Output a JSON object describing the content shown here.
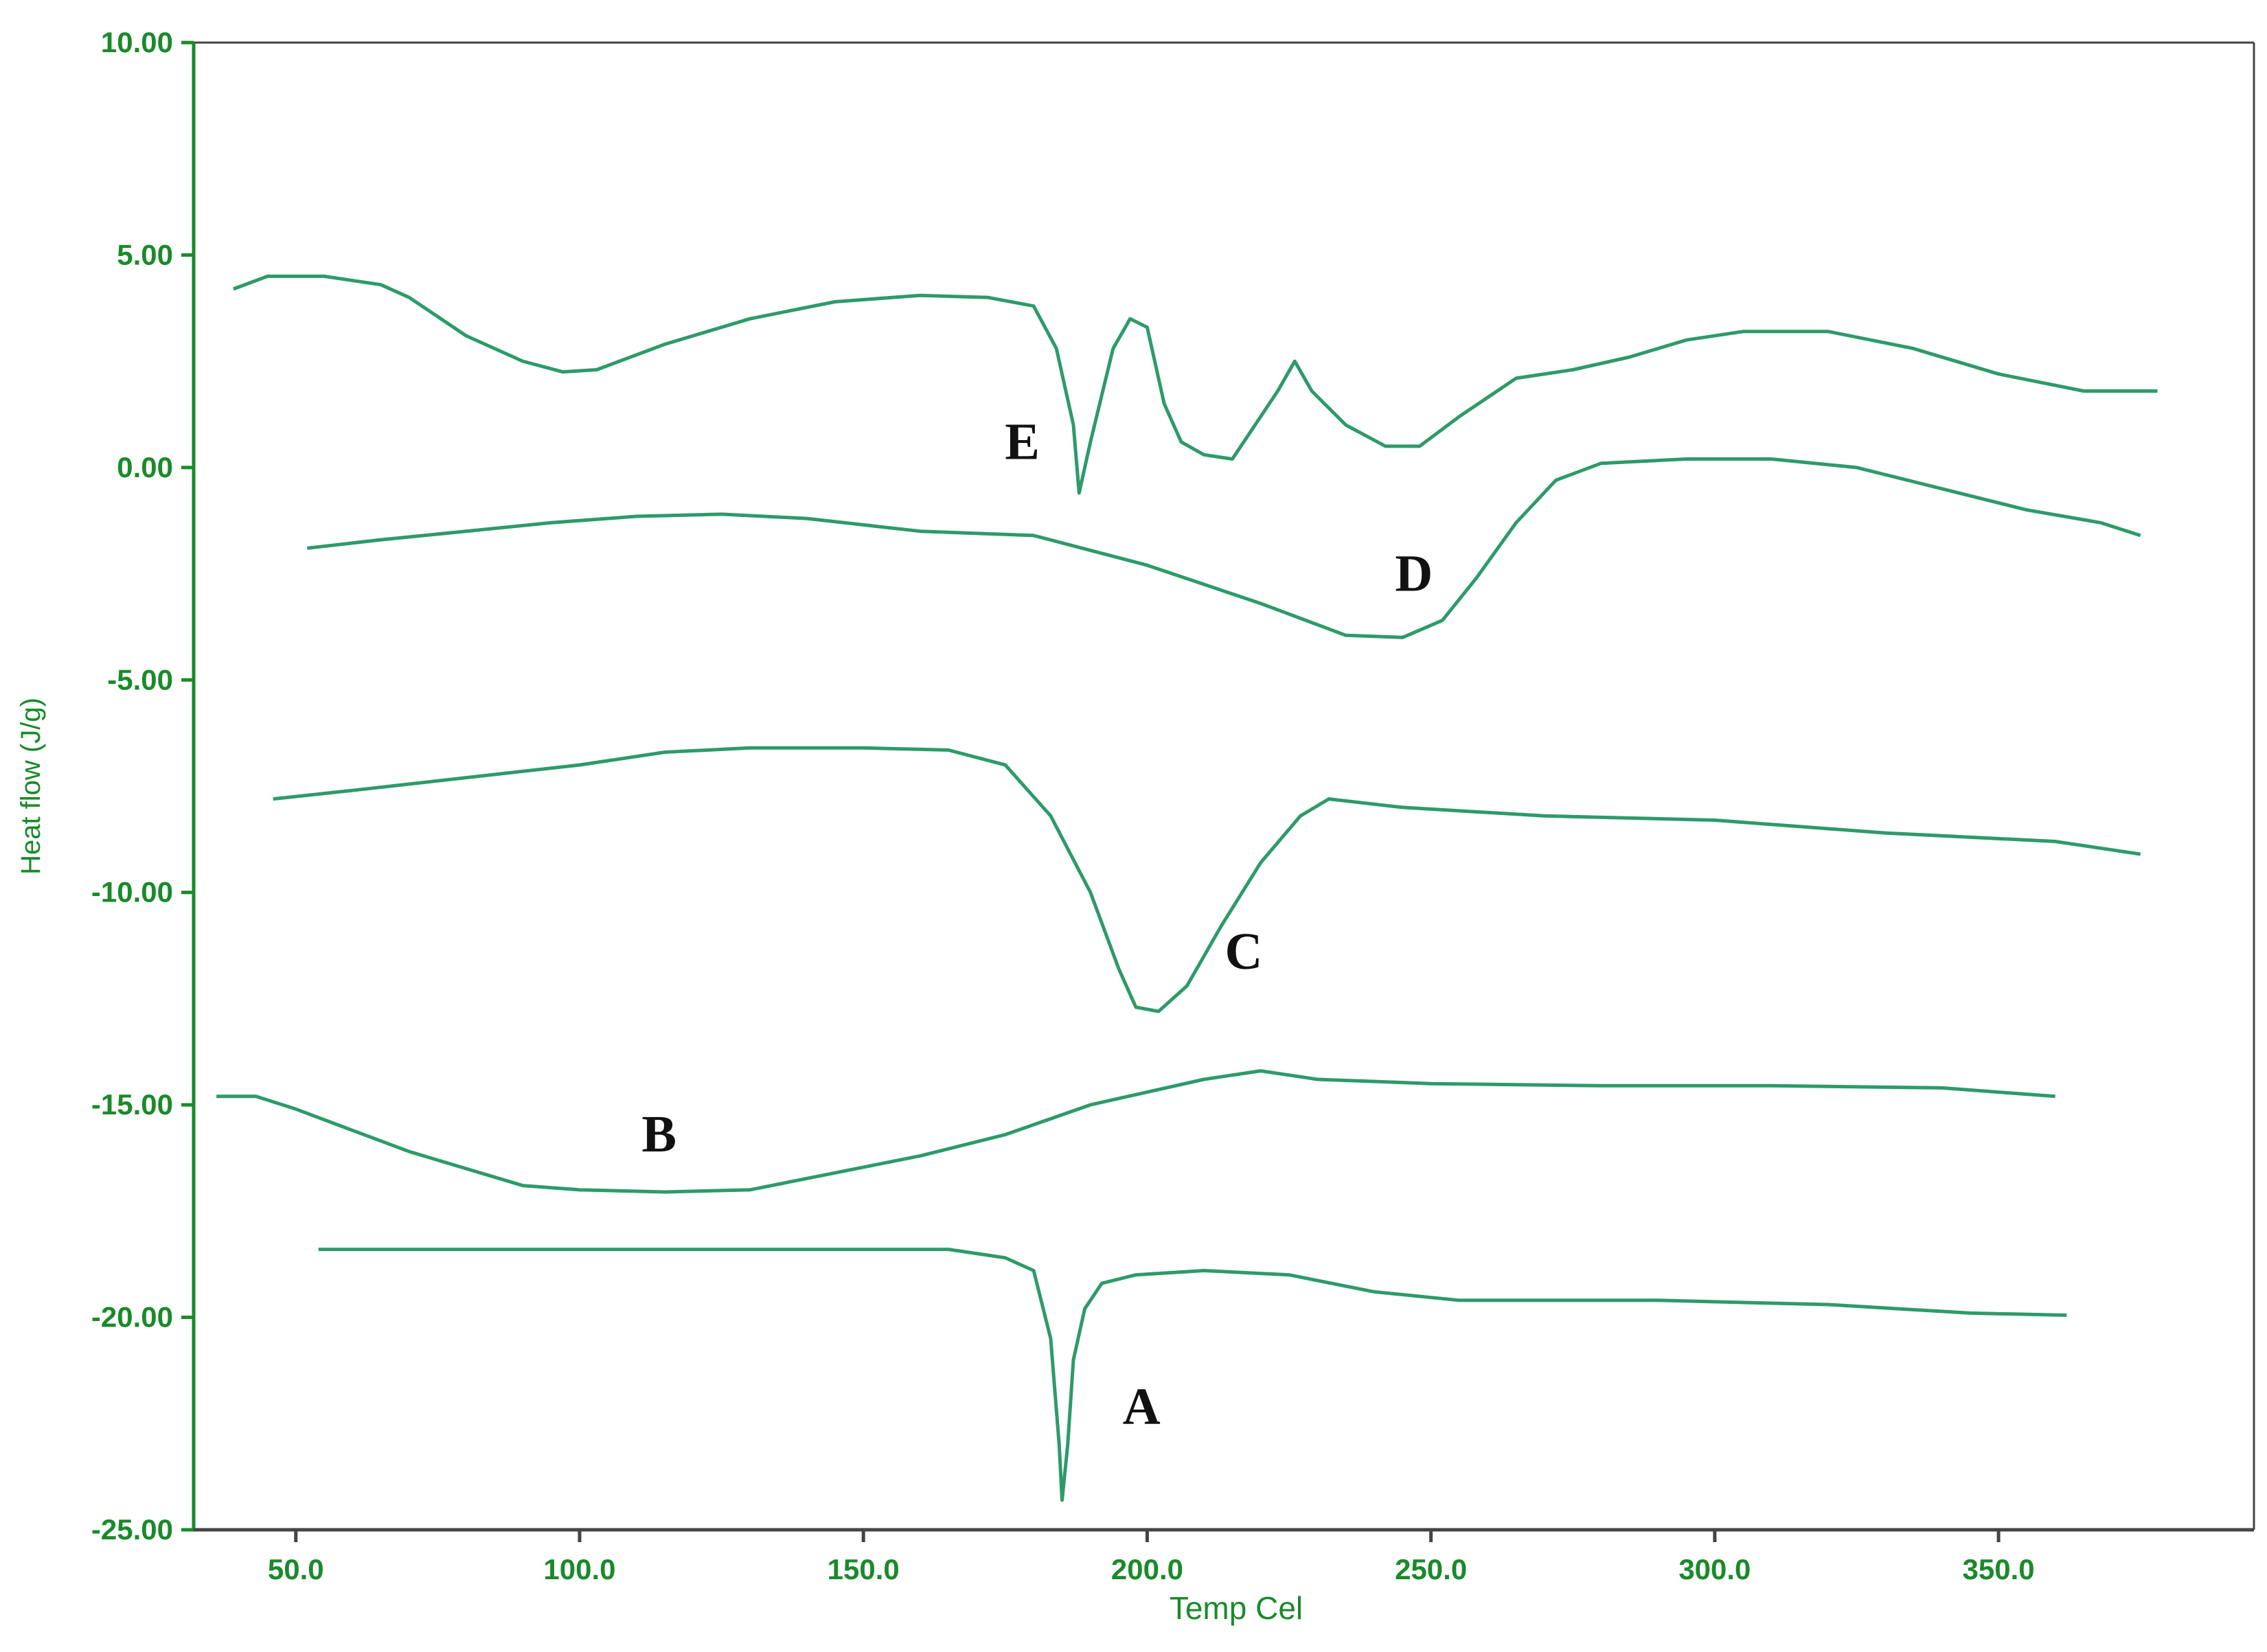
{
  "chart_data": {
    "type": "line",
    "title": "",
    "xlabel": "Temp Cel",
    "ylabel": "Heat flow (J/g)",
    "xlim": [
      32,
      395
    ],
    "ylim": [
      -25,
      10
    ],
    "x_ticks": [
      "50.0",
      "100.0",
      "150.0",
      "200.0",
      "250.0",
      "300.0",
      "350.0"
    ],
    "y_ticks": [
      "10.00",
      "5.00",
      "0.00",
      "-5.00",
      "-10.00",
      "-15.00",
      "-20.00",
      "-25.00"
    ],
    "grid": false,
    "colors": {
      "axis": "#1a8a2a",
      "curve": "#2e9a6a",
      "curve_dark": "#1f4f3a",
      "text": "#111111"
    },
    "series": [
      {
        "name": "E",
        "points": [
          [
            39,
            4.2
          ],
          [
            45,
            4.5
          ],
          [
            55,
            4.5
          ],
          [
            65,
            4.3
          ],
          [
            70,
            4.0
          ],
          [
            80,
            3.1
          ],
          [
            90,
            2.5
          ],
          [
            97,
            2.25
          ],
          [
            103,
            2.3
          ],
          [
            115,
            2.9
          ],
          [
            130,
            3.5
          ],
          [
            145,
            3.9
          ],
          [
            160,
            4.05
          ],
          [
            172,
            4.0
          ],
          [
            180,
            3.8
          ],
          [
            184,
            2.8
          ],
          [
            187,
            1.0
          ],
          [
            188,
            -0.6
          ],
          [
            190,
            0.6
          ],
          [
            194,
            2.8
          ],
          [
            197,
            3.5
          ],
          [
            200,
            3.3
          ],
          [
            203,
            1.5
          ],
          [
            206,
            0.6
          ],
          [
            210,
            0.3
          ],
          [
            215,
            0.2
          ],
          [
            219,
            1.0
          ],
          [
            223,
            1.8
          ],
          [
            226,
            2.5
          ],
          [
            229,
            1.8
          ],
          [
            235,
            1.0
          ],
          [
            242,
            0.5
          ],
          [
            248,
            0.5
          ],
          [
            255,
            1.2
          ],
          [
            265,
            2.1
          ],
          [
            275,
            2.3
          ],
          [
            285,
            2.6
          ],
          [
            295,
            3.0
          ],
          [
            305,
            3.2
          ],
          [
            320,
            3.2
          ],
          [
            335,
            2.8
          ],
          [
            350,
            2.2
          ],
          [
            365,
            1.8
          ],
          [
            378,
            1.8
          ]
        ]
      },
      {
        "name": "D",
        "points": [
          [
            52,
            -1.9
          ],
          [
            65,
            -1.7
          ],
          [
            80,
            -1.5
          ],
          [
            95,
            -1.3
          ],
          [
            110,
            -1.15
          ],
          [
            125,
            -1.1
          ],
          [
            140,
            -1.2
          ],
          [
            160,
            -1.5
          ],
          [
            180,
            -1.6
          ],
          [
            200,
            -2.3
          ],
          [
            220,
            -3.2
          ],
          [
            235,
            -3.95
          ],
          [
            245,
            -4.0
          ],
          [
            252,
            -3.6
          ],
          [
            258,
            -2.6
          ],
          [
            265,
            -1.3
          ],
          [
            272,
            -0.3
          ],
          [
            280,
            0.1
          ],
          [
            295,
            0.2
          ],
          [
            310,
            0.2
          ],
          [
            325,
            0.0
          ],
          [
            340,
            -0.5
          ],
          [
            355,
            -1.0
          ],
          [
            368,
            -1.3
          ],
          [
            375,
            -1.6
          ]
        ]
      },
      {
        "name": "C",
        "points": [
          [
            46,
            -7.8
          ],
          [
            60,
            -7.6
          ],
          [
            80,
            -7.3
          ],
          [
            100,
            -7.0
          ],
          [
            115,
            -6.7
          ],
          [
            130,
            -6.6
          ],
          [
            150,
            -6.6
          ],
          [
            165,
            -6.65
          ],
          [
            175,
            -7.0
          ],
          [
            183,
            -8.2
          ],
          [
            190,
            -10.0
          ],
          [
            195,
            -11.8
          ],
          [
            198,
            -12.7
          ],
          [
            202,
            -12.8
          ],
          [
            207,
            -12.2
          ],
          [
            213,
            -10.8
          ],
          [
            220,
            -9.3
          ],
          [
            227,
            -8.2
          ],
          [
            232,
            -7.8
          ],
          [
            245,
            -8.0
          ],
          [
            270,
            -8.2
          ],
          [
            300,
            -8.3
          ],
          [
            330,
            -8.6
          ],
          [
            360,
            -8.8
          ],
          [
            375,
            -9.1
          ]
        ]
      },
      {
        "name": "B",
        "points": [
          [
            36,
            -14.8
          ],
          [
            43,
            -14.8
          ],
          [
            50,
            -15.1
          ],
          [
            60,
            -15.6
          ],
          [
            70,
            -16.1
          ],
          [
            80,
            -16.5
          ],
          [
            90,
            -16.9
          ],
          [
            100,
            -17.0
          ],
          [
            115,
            -17.05
          ],
          [
            130,
            -17.0
          ],
          [
            145,
            -16.6
          ],
          [
            160,
            -16.2
          ],
          [
            175,
            -15.7
          ],
          [
            190,
            -15.0
          ],
          [
            200,
            -14.7
          ],
          [
            210,
            -14.4
          ],
          [
            220,
            -14.2
          ],
          [
            230,
            -14.4
          ],
          [
            250,
            -14.5
          ],
          [
            280,
            -14.55
          ],
          [
            310,
            -14.55
          ],
          [
            340,
            -14.6
          ],
          [
            360,
            -14.8
          ]
        ]
      },
      {
        "name": "A",
        "points": [
          [
            54,
            -18.4
          ],
          [
            80,
            -18.4
          ],
          [
            110,
            -18.4
          ],
          [
            140,
            -18.4
          ],
          [
            165,
            -18.4
          ],
          [
            175,
            -18.6
          ],
          [
            180,
            -18.9
          ],
          [
            183,
            -20.5
          ],
          [
            184.5,
            -23.0
          ],
          [
            185,
            -24.3
          ],
          [
            186,
            -23.0
          ],
          [
            187,
            -21.0
          ],
          [
            189,
            -19.8
          ],
          [
            192,
            -19.2
          ],
          [
            198,
            -19.0
          ],
          [
            210,
            -18.9
          ],
          [
            225,
            -19.0
          ],
          [
            240,
            -19.4
          ],
          [
            255,
            -19.6
          ],
          [
            290,
            -19.6
          ],
          [
            320,
            -19.7
          ],
          [
            345,
            -19.9
          ],
          [
            362,
            -19.95
          ]
        ]
      }
    ],
    "annotations": [
      {
        "text": "E",
        "x": 178,
        "y": 0.2
      },
      {
        "text": "D",
        "x": 247,
        "y": -2.9
      },
      {
        "text": "C",
        "x": 217,
        "y": -11.8
      },
      {
        "text": "B",
        "x": 114,
        "y": -16.1
      },
      {
        "text": "A",
        "x": 199,
        "y": -22.5
      }
    ]
  }
}
